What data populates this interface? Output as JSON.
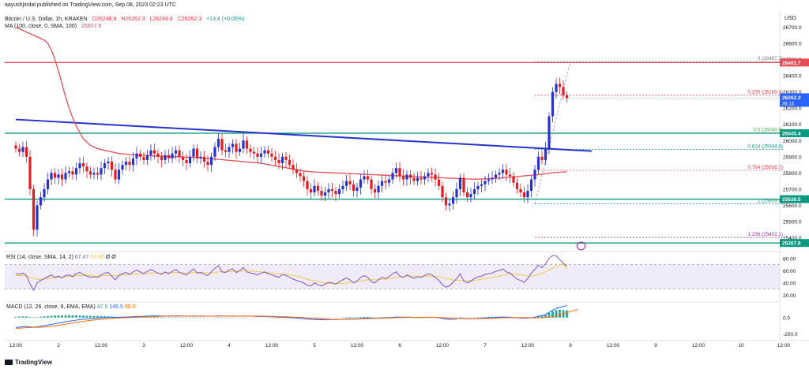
{
  "header": {
    "published": "aayushjindal published on TradingView.com, Sep 08, 2023 02:23 UTC",
    "title": "Bitcoin / U.S. Dollar, 1h, KRAKEN",
    "ohlc": {
      "o": "O26248.9",
      "h": "H26262.3",
      "l": "L26248.8",
      "c": "C26262.3",
      "chg": "+13.4 (+0.05%)"
    },
    "ma_label": "MA (100, close, 0, SMA, 100)",
    "ma_value": "25807.9",
    "currency": "USD"
  },
  "rsi_header": {
    "label": "RSI (14, close, SMA, 14, 2)",
    "v1": "67.47",
    "v2": "63.90",
    "v3": "Ø",
    "v4": "Ø"
  },
  "macd_header": {
    "label": "MACD (12, 26, close, 9, EMA, EMA)",
    "v1": "47.5",
    "v2": "146.5",
    "v3": "99.0"
  },
  "footer": "TradingView",
  "chart_data": {
    "type": "candlestick",
    "symbol": "BTCUSD",
    "ylim": [
      25320,
      26780
    ],
    "price_ticks": [
      25400,
      25500,
      25600,
      25700,
      25800,
      25900,
      26000,
      26100,
      26200,
      26300,
      26400,
      26500,
      26600,
      26700
    ],
    "price_tick_labels": [
      "25400.0",
      "25500.0",
      "25600.0",
      "25700.0",
      "25800.0",
      "25900.0",
      "26000.0",
      "26100.0",
      "26200.0",
      "26300.0",
      "26400.0",
      "26500.0",
      "26600.0",
      "26700.0"
    ],
    "time_labels": [
      {
        "t": 0,
        "label": "12:00"
      },
      {
        "t": 12,
        "label": "2"
      },
      {
        "t": 24,
        "label": "12:00"
      },
      {
        "t": 36,
        "label": "3"
      },
      {
        "t": 48,
        "label": "12:00"
      },
      {
        "t": 60,
        "label": "4"
      },
      {
        "t": 72,
        "label": "12:00"
      },
      {
        "t": 84,
        "label": "5"
      },
      {
        "t": 96,
        "label": "12:00"
      },
      {
        "t": 108,
        "label": "6"
      },
      {
        "t": 120,
        "label": "12:00"
      },
      {
        "t": 132,
        "label": "7"
      },
      {
        "t": 144,
        "label": "12:00"
      },
      {
        "t": 156,
        "label": "8"
      },
      {
        "t": 168,
        "label": "12:00"
      },
      {
        "t": 180,
        "label": "9"
      },
      {
        "t": 192,
        "label": "12:00"
      },
      {
        "t": 204,
        "label": "10"
      },
      {
        "t": 216,
        "label": "12:00"
      }
    ],
    "close": [
      25950,
      25930,
      25960,
      25900,
      25700,
      25450,
      25600,
      25650,
      25700,
      25760,
      25800,
      25770,
      25790,
      25760,
      25800,
      25810,
      25790,
      25830,
      25860,
      25840,
      25810,
      25790,
      25800,
      25790,
      25830,
      25860,
      25870,
      25820,
      25760,
      25820,
      25850,
      25870,
      25850,
      25890,
      25920,
      25900,
      25880,
      25910,
      25940,
      25920,
      25900,
      25880,
      25910,
      25890,
      25920,
      25940,
      25900,
      25880,
      25860,
      25900,
      25950,
      25890,
      25900,
      25870,
      25850,
      25900,
      25960,
      26010,
      25940,
      25930,
      25960,
      25980,
      25930,
      25950,
      26000,
      25950,
      25930,
      25920,
      25900,
      25920,
      25940,
      25920,
      25900,
      25880,
      25860,
      25900,
      25880,
      25850,
      25820,
      25800,
      25780,
      25750,
      25700,
      25680,
      25720,
      25690,
      25660,
      25680,
      25700,
      25690,
      25670,
      25700,
      25720,
      25750,
      25730,
      25690,
      25710,
      25760,
      25780,
      25760,
      25700,
      25680,
      25720,
      25750,
      25740,
      25760,
      25800,
      25830,
      25780,
      25760,
      25790,
      25770,
      25750,
      25770,
      25760,
      25780,
      25800,
      25790,
      25760,
      25720,
      25650,
      25600,
      25610,
      25650,
      25700,
      25770,
      25680,
      25650,
      25670,
      25700,
      25720,
      25730,
      25750,
      25760,
      25770,
      25790,
      25800,
      25820,
      25790,
      25780,
      25740,
      25700,
      25680,
      25650,
      25690,
      25760,
      25820,
      25900,
      25880,
      25950,
      26150,
      26300,
      26350,
      26330,
      26280,
      26262
    ],
    "ma100": [
      26700,
      26690,
      26680,
      26670,
      26660,
      26650,
      26640,
      26630,
      26620,
      26600,
      26560,
      26500,
      26430,
      26350,
      26270,
      26200,
      26140,
      26090,
      26050,
      26010,
      25990,
      25970,
      25960,
      25950,
      25945,
      25940,
      25935,
      25930,
      25925,
      25920,
      25918,
      25916,
      25914,
      25912,
      25910,
      25910,
      25910,
      25908,
      25906,
      25905,
      25904,
      25903,
      25902,
      25901,
      25900,
      25900,
      25900,
      25899,
      25898,
      25897,
      25896,
      25895,
      25894,
      25892,
      25890,
      25888,
      25886,
      25884,
      25882,
      25880,
      25878,
      25876,
      25874,
      25872,
      25870,
      25868,
      25866,
      25864,
      25862,
      25860,
      25856,
      25852,
      25848,
      25844,
      25840,
      25836,
      25832,
      25828,
      25824,
      25820,
      25816,
      25812,
      25810,
      25808,
      25806,
      25805,
      25804,
      25803,
      25802,
      25801,
      25800,
      25799,
      25798,
      25797,
      25796,
      25795,
      25794,
      25793,
      25792,
      25791,
      25790,
      25789,
      25788,
      25787,
      25786,
      25785,
      25784,
      25783,
      25782,
      25781,
      25780,
      25779,
      25778,
      25777,
      25776,
      25775,
      25774,
      25773,
      25772,
      25771,
      25770,
      25769,
      25768,
      25767,
      25766,
      25765,
      25764,
      25763,
      25762,
      25762,
      25762,
      25763,
      25764,
      25765,
      25766,
      25767,
      25768,
      25770,
      25772,
      25774,
      25776,
      25778,
      25780,
      25782,
      25784,
      25786,
      25788,
      25790,
      25792,
      25795,
      25798,
      25801,
      25803,
      25805,
      25806,
      25808
    ],
    "horizontal_levels": [
      {
        "price": 26481.7,
        "label": "26481.7",
        "color": "#e84c55"
      },
      {
        "price": 26045.4,
        "label": "26045.4",
        "color": "#089981"
      },
      {
        "price": 25638.5,
        "label": "25638.5",
        "color": "#089981"
      },
      {
        "price": 25367.8,
        "label": "25367.8",
        "color": "#089981"
      }
    ],
    "current_price": {
      "price": 26262.3,
      "label": "26262.3",
      "countdown": "36:13",
      "color": "#2962ff"
    },
    "trendline": {
      "from": {
        "t": 0,
        "price": 26130
      },
      "to": {
        "t": 162,
        "price": 25935
      },
      "color": "#2733cc"
    },
    "fibonacci": [
      {
        "ratio": "0",
        "price": 26487.7,
        "color": "#787b86"
      },
      {
        "ratio": "0.236",
        "price": 26280.4,
        "color": "#f23645"
      },
      {
        "ratio": "0.5",
        "price": 26048.6,
        "color": "#4caf50"
      },
      {
        "ratio": "0.618",
        "price": 25944.9,
        "color": "#089981"
      },
      {
        "ratio": "0.764",
        "price": 25816.7,
        "color": "#f23645"
      },
      {
        "ratio": "1",
        "price": 25609.4,
        "color": "#089981"
      },
      {
        "ratio": "1.236",
        "price": 25402.1,
        "color": "#9c27b0"
      }
    ],
    "rsi": {
      "ticks": [
        20,
        40,
        60,
        80
      ],
      "tick_labels": [
        "20.00",
        "40.00",
        "60.00",
        "80.00"
      ],
      "band": [
        30,
        70
      ],
      "values": [
        55,
        54,
        56,
        52,
        38,
        28,
        40,
        44,
        47,
        50,
        53,
        49,
        51,
        48,
        52,
        53,
        50,
        55,
        57,
        54,
        51,
        49,
        50,
        49,
        53,
        56,
        57,
        51,
        45,
        52,
        55,
        57,
        54,
        58,
        61,
        58,
        55,
        59,
        62,
        59,
        56,
        54,
        58,
        55,
        59,
        62,
        57,
        55,
        53,
        58,
        63,
        56,
        57,
        54,
        52,
        58,
        64,
        68,
        58,
        57,
        61,
        63,
        57,
        60,
        65,
        58,
        56,
        55,
        53,
        56,
        58,
        55,
        53,
        51,
        49,
        54,
        52,
        49,
        46,
        44,
        42,
        40,
        36,
        35,
        40,
        37,
        35,
        38,
        41,
        40,
        38,
        42,
        45,
        48,
        45,
        40,
        43,
        49,
        52,
        49,
        42,
        40,
        45,
        49,
        47,
        50,
        55,
        58,
        51,
        49,
        53,
        50,
        47,
        50,
        49,
        52,
        55,
        53,
        49,
        44,
        37,
        33,
        35,
        41,
        47,
        55,
        43,
        40,
        43,
        47,
        50,
        51,
        54,
        55,
        56,
        59,
        60,
        63,
        58,
        56,
        51,
        46,
        44,
        41,
        47,
        56,
        62,
        69,
        65,
        71,
        80,
        85,
        84,
        78,
        72,
        67
      ],
      "ma": [
        52,
        52,
        52,
        51,
        49,
        47,
        46,
        46,
        46,
        47,
        48,
        48,
        49,
        49,
        50,
        51,
        51,
        52,
        52,
        52,
        52,
        52,
        51,
        51,
        51,
        52,
        52,
        52,
        52,
        52,
        53,
        53,
        53,
        54,
        55,
        55,
        55,
        56,
        56,
        56,
        56,
        56,
        56,
        56,
        57,
        57,
        57,
        57,
        56,
        56,
        57,
        57,
        57,
        57,
        56,
        56,
        57,
        58,
        58,
        58,
        58,
        59,
        59,
        59,
        60,
        60,
        59,
        59,
        58,
        58,
        57,
        57,
        56,
        55,
        55,
        54,
        54,
        53,
        52,
        51,
        50,
        48,
        46,
        44,
        43,
        42,
        41,
        40,
        39,
        39,
        38,
        39,
        39,
        40,
        41,
        41,
        42,
        43,
        44,
        45,
        45,
        45,
        45,
        46,
        46,
        47,
        48,
        49,
        50,
        50,
        51,
        51,
        51,
        51,
        51,
        51,
        51,
        51,
        51,
        50,
        49,
        47,
        46,
        45,
        44,
        44,
        44,
        44,
        44,
        44,
        45,
        46,
        47,
        48,
        49,
        50,
        51,
        53,
        54,
        55,
        55,
        54,
        53,
        52,
        51,
        51,
        52,
        54,
        56,
        58,
        61,
        64,
        67,
        69,
        71,
        64
      ]
    },
    "macd": {
      "ticks": [
        0.0,
        -200.0
      ],
      "tick_labels": [
        "0.0",
        "-200.0"
      ],
      "ylim": [
        -260,
        180
      ],
      "macd": [
        -120,
        -115,
        -110,
        -108,
        -112,
        -118,
        -112,
        -105,
        -98,
        -90,
        -82,
        -74,
        -66,
        -58,
        -50,
        -43,
        -37,
        -31,
        -25,
        -20,
        -16,
        -12,
        -9,
        -6,
        -3,
        0,
        2,
        3,
        3,
        4,
        6,
        8,
        9,
        11,
        14,
        15,
        16,
        18,
        20,
        21,
        21,
        20,
        20,
        20,
        21,
        22,
        21,
        20,
        19,
        19,
        21,
        20,
        20,
        19,
        17,
        17,
        19,
        22,
        20,
        19,
        19,
        20,
        19,
        18,
        20,
        19,
        18,
        16,
        14,
        13,
        13,
        12,
        10,
        8,
        6,
        5,
        3,
        1,
        -2,
        -5,
        -8,
        -12,
        -17,
        -21,
        -22,
        -24,
        -26,
        -27,
        -26,
        -25,
        -25,
        -23,
        -20,
        -16,
        -14,
        -15,
        -14,
        -10,
        -6,
        -4,
        -6,
        -8,
        -7,
        -4,
        -2,
        0,
        3,
        7,
        6,
        5,
        6,
        5,
        3,
        3,
        2,
        3,
        4,
        4,
        2,
        -2,
        -9,
        -17,
        -21,
        -20,
        -16,
        -8,
        -12,
        -15,
        -14,
        -12,
        -10,
        -8,
        -5,
        -2,
        0,
        3,
        5,
        7,
        6,
        5,
        2,
        -2,
        -5,
        -8,
        -7,
        -2,
        5,
        17,
        25,
        38,
        64,
        90,
        112,
        126,
        135,
        147
      ],
      "signal": [
        -130,
        -128,
        -125,
        -122,
        -120,
        -119,
        -118,
        -116,
        -113,
        -110,
        -105,
        -99,
        -93,
        -86,
        -79,
        -72,
        -65,
        -58,
        -51,
        -45,
        -39,
        -34,
        -29,
        -25,
        -21,
        -17,
        -13,
        -10,
        -7,
        -5,
        -3,
        -1,
        0,
        2,
        4,
        6,
        8,
        10,
        12,
        13,
        15,
        16,
        17,
        17,
        18,
        19,
        19,
        19,
        19,
        19,
        19,
        19,
        19,
        19,
        19,
        19,
        19,
        19,
        19,
        19,
        19,
        19,
        19,
        19,
        19,
        19,
        19,
        18,
        18,
        17,
        16,
        16,
        15,
        14,
        12,
        11,
        10,
        8,
        6,
        4,
        2,
        -1,
        -4,
        -7,
        -10,
        -13,
        -15,
        -18,
        -20,
        -21,
        -22,
        -22,
        -22,
        -21,
        -20,
        -19,
        -18,
        -16,
        -14,
        -12,
        -11,
        -10,
        -9,
        -8,
        -6,
        -5,
        -3,
        -1,
        0,
        1,
        2,
        2,
        2,
        2,
        2,
        2,
        3,
        3,
        3,
        2,
        0,
        -3,
        -6,
        -9,
        -11,
        -12,
        -12,
        -12,
        -12,
        -13,
        -13,
        -12,
        -11,
        -10,
        -9,
        -7,
        -5,
        -3,
        -2,
        0,
        1,
        1,
        1,
        0,
        -1,
        -3,
        -4,
        -3,
        -2,
        2,
        6,
        12,
        20,
        31,
        44,
        60,
        74,
        86,
        99
      ]
    }
  }
}
